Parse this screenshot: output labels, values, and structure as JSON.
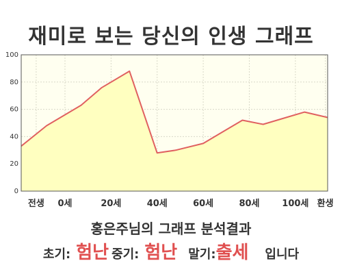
{
  "header": {
    "title": "재미로 보는 당신의 인생 그래프"
  },
  "chart_data": {
    "type": "area",
    "title": "재미로 보는 당신의 인생 그래프",
    "xlabel": "",
    "ylabel": "",
    "ylim": [
      0,
      100
    ],
    "yticks": [
      0,
      20,
      40,
      60,
      80,
      100
    ],
    "xtick_labels": [
      "전생",
      "0세",
      "20세",
      "40세",
      "60세",
      "80세",
      "100세",
      "환생"
    ],
    "x_positions": [
      -12.5,
      0,
      20,
      40,
      60,
      80,
      100,
      113
    ],
    "xlim": [
      -19,
      114
    ],
    "grid": true,
    "legend": "none",
    "line_color": "#e06060",
    "fill_color": "#ffffc0",
    "series": [
      {
        "x": [
          -19,
          -8,
          7,
          16,
          28,
          40,
          48,
          60,
          68,
          77,
          86,
          96,
          104,
          114
        ],
        "values": [
          33,
          48,
          63,
          76,
          88,
          28,
          30,
          35,
          43,
          52,
          49,
          54,
          58,
          54
        ]
      }
    ]
  },
  "result": {
    "heading": "홍은주님의 그래프 분석결과",
    "early_label": "초기:",
    "early_value": "험난",
    "middle_label": "중기:",
    "middle_value": "험난",
    "late_label": "말기:",
    "late_value": "출세",
    "suffix": "입니다"
  }
}
